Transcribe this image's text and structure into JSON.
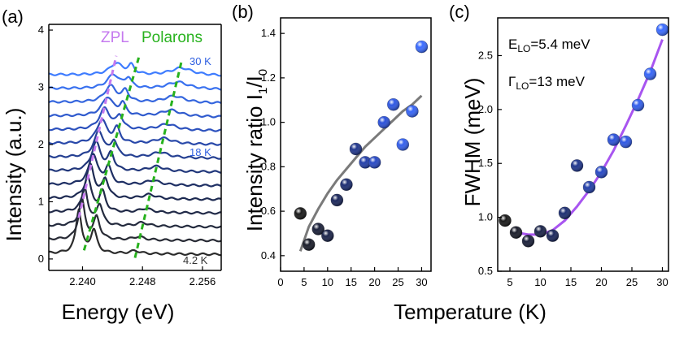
{
  "xlabel_shared": "Temperature (K)",
  "chart_data": [
    {
      "panel": "(a)",
      "type": "line",
      "xlabel": "Energy (eV)",
      "ylabel": "Intensity (a.u.)",
      "xlim": [
        2.2355,
        2.2585
      ],
      "ylim": [
        -0.2,
        4.1
      ],
      "xticks": [
        "2.240",
        "2.248",
        "2.256"
      ],
      "xtick_values": [
        2.24,
        2.248,
        2.256
      ],
      "yticks": [
        "0",
        "1",
        "2",
        "3",
        "4"
      ],
      "ytick_values": [
        0,
        1,
        2,
        3,
        4
      ],
      "series_count": 14,
      "offset_step": 0.24,
      "colors_cold_to_hot": [
        "#2b2b2b",
        "#1c2a55",
        "#2a4db8",
        "#3e7cff"
      ],
      "annotations": {
        "zpl": "ZPL",
        "polarons": "Polarons",
        "t_high": "30 K",
        "t_mid": "18 K",
        "t_low": "4.2 K"
      },
      "zpl_guide": [
        [
          2.2395,
          0.72
        ],
        [
          2.2445,
          3.55
        ]
      ],
      "polaron_guide_1": [
        [
          2.2402,
          0.15
        ],
        [
          2.2475,
          3.52
        ]
      ],
      "polaron_guide_2": [
        [
          2.247,
          0.02
        ],
        [
          2.2532,
          3.45
        ]
      ],
      "guide_colors": {
        "zpl": "#c57aef",
        "polarons": "#27b21d"
      }
    },
    {
      "panel": "(b)",
      "type": "scatter",
      "ylabel_main": "Intensity ratio I",
      "ylabel_sub1": "1",
      "ylabel_slash": "/I",
      "ylabel_sub2": "0",
      "xlim": [
        0,
        32
      ],
      "ylim": [
        0.33,
        1.47
      ],
      "xticks": [
        "0",
        "5",
        "10",
        "15",
        "20",
        "25",
        "30"
      ],
      "xtick_values": [
        0,
        5,
        10,
        15,
        20,
        25,
        30
      ],
      "yticks": [
        "0.4",
        "0.6",
        "0.8",
        "1.0",
        "1.2",
        "1.4"
      ],
      "ytick_values": [
        0.4,
        0.6,
        0.8,
        1.0,
        1.2,
        1.4
      ],
      "points": [
        [
          4.2,
          0.59
        ],
        [
          6,
          0.45
        ],
        [
          8,
          0.52
        ],
        [
          10,
          0.49
        ],
        [
          12,
          0.65
        ],
        [
          14,
          0.72
        ],
        [
          16,
          0.88
        ],
        [
          18,
          0.82
        ],
        [
          20,
          0.82
        ],
        [
          22,
          1.0
        ],
        [
          24,
          1.08
        ],
        [
          26,
          0.9
        ],
        [
          28,
          1.05
        ],
        [
          30,
          1.34
        ]
      ],
      "fit": [
        [
          4.2,
          0.42
        ],
        [
          6,
          0.53
        ],
        [
          8,
          0.61
        ],
        [
          10,
          0.68
        ],
        [
          12,
          0.74
        ],
        [
          14,
          0.79
        ],
        [
          16,
          0.84
        ],
        [
          18,
          0.89
        ],
        [
          20,
          0.93
        ],
        [
          22,
          0.97
        ],
        [
          24,
          1.01
        ],
        [
          26,
          1.05
        ],
        [
          28,
          1.08
        ],
        [
          30,
          1.12
        ]
      ],
      "fit_color": "#7a7a7a"
    },
    {
      "panel": "(c)",
      "type": "scatter",
      "ylabel": "FWHM (meV)",
      "xlim": [
        3,
        31
      ],
      "ylim": [
        0.5,
        2.85
      ],
      "xticks": [
        "5",
        "10",
        "15",
        "20",
        "25",
        "30"
      ],
      "xtick_values": [
        5,
        10,
        15,
        20,
        25,
        30
      ],
      "yticks": [
        "0.5",
        "1.0",
        "1.5",
        "2.0",
        "2.5"
      ],
      "ytick_values": [
        0.5,
        1.0,
        1.5,
        2.0,
        2.5
      ],
      "points": [
        [
          4.2,
          0.97
        ],
        [
          6,
          0.86
        ],
        [
          8,
          0.78
        ],
        [
          10,
          0.87
        ],
        [
          12,
          0.83
        ],
        [
          14,
          1.04
        ],
        [
          16,
          1.48
        ],
        [
          18,
          1.28
        ],
        [
          20,
          1.42
        ],
        [
          22,
          1.72
        ],
        [
          24,
          1.7
        ],
        [
          26,
          2.04
        ],
        [
          28,
          2.33
        ],
        [
          30,
          2.74
        ]
      ],
      "fit": [
        [
          6,
          0.86
        ],
        [
          8,
          0.84
        ],
        [
          10,
          0.84
        ],
        [
          12,
          0.88
        ],
        [
          14,
          0.97
        ],
        [
          16,
          1.1
        ],
        [
          18,
          1.25
        ],
        [
          20,
          1.42
        ],
        [
          22,
          1.62
        ],
        [
          24,
          1.85
        ],
        [
          26,
          2.09
        ],
        [
          28,
          2.35
        ],
        [
          30,
          2.65
        ]
      ],
      "fit_color": "#a855f0",
      "ann1_main": "E",
      "ann1_sub": "LO",
      "ann1_val": "=5.4 meV",
      "ann2_main": "Γ",
      "ann2_sub": "LO",
      "ann2_val": "=13 meV"
    }
  ]
}
